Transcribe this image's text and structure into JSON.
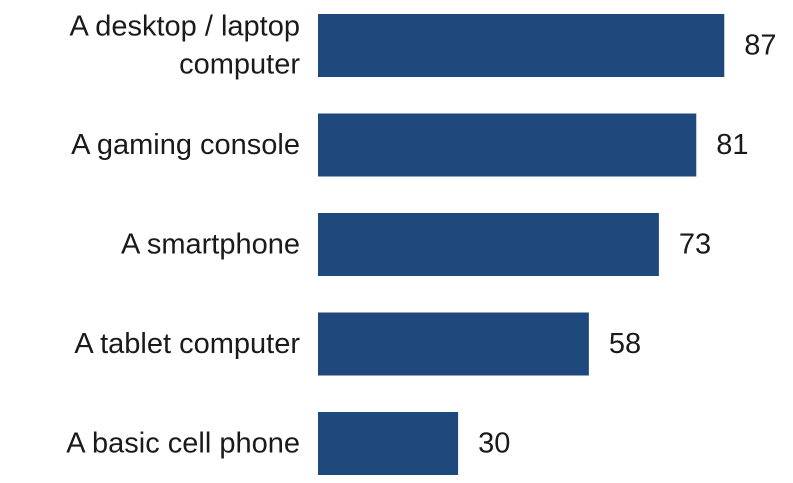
{
  "chart_data": {
    "type": "bar",
    "orientation": "horizontal",
    "categories": [
      "A desktop / laptop computer",
      "A gaming console",
      "A smartphone",
      "A tablet computer",
      "A basic cell phone"
    ],
    "category_label_lines": [
      [
        "A desktop / laptop",
        "computer"
      ],
      [
        "A gaming console"
      ],
      [
        "A smartphone"
      ],
      [
        "A tablet computer"
      ],
      [
        "A basic cell phone"
      ]
    ],
    "values": [
      87,
      81,
      73,
      58,
      30
    ],
    "data_labels": [
      "87",
      "81",
      "73",
      "58",
      "30"
    ],
    "xlim": [
      0,
      100
    ],
    "grid": false,
    "legend": "none",
    "bar_color": "#1f497d"
  }
}
